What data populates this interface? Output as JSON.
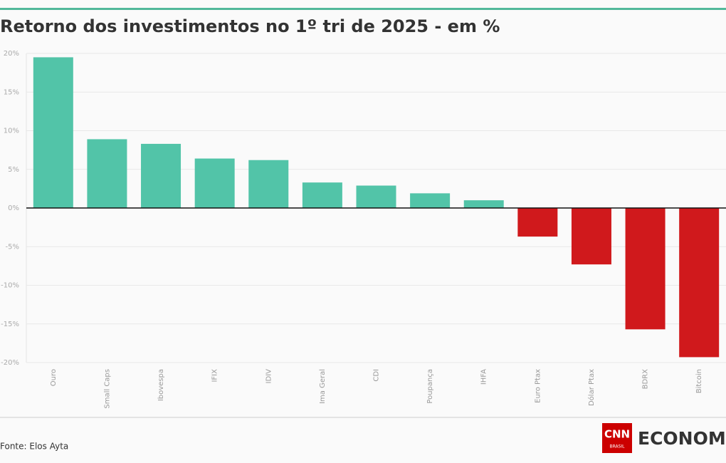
{
  "chart_data": {
    "type": "bar",
    "title": "Retorno dos investimentos no 1º tri de 2025 - em %",
    "categories": [
      "Ouro",
      "Small Caps",
      "Ibovespa",
      "IFIX",
      "IDIV",
      "Ima Geral",
      "CDI",
      "Poupança",
      "IHFA",
      "Euro Ptax",
      "Dólar Ptax",
      "BDRX",
      "Bitcoin"
    ],
    "values": [
      19.5,
      8.9,
      8.3,
      6.4,
      6.2,
      3.3,
      2.9,
      1.9,
      1.0,
      -3.7,
      -7.3,
      -15.7,
      -19.3
    ],
    "positive_color": "#52c4a8",
    "negative_color": "#d0191c",
    "ylim": [
      -20,
      20
    ],
    "yticks": [
      {
        "value": -20,
        "label": "-20%"
      },
      {
        "value": -15,
        "label": "-15%"
      },
      {
        "value": -10,
        "label": "-10%"
      },
      {
        "value": -5,
        "label": "-5%"
      },
      {
        "value": 0,
        "label": "0%"
      },
      {
        "value": 5,
        "label": "5%"
      },
      {
        "value": 10,
        "label": "10%"
      },
      {
        "value": 15,
        "label": "15%"
      },
      {
        "value": 20,
        "label": "20%"
      }
    ],
    "grid": true
  },
  "footer": {
    "source": "Fonte: Elos Ayta"
  },
  "logo": {
    "mark": "CNN",
    "sub": "BRASIL",
    "text": "ECONOMIA"
  }
}
